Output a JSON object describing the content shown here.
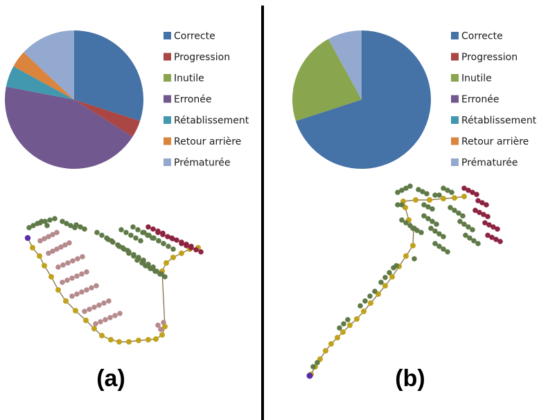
{
  "colors": {
    "divider": "#000000",
    "edge": "#8a7a50",
    "node_path": "#c1a21c",
    "node_start": "#5a2ea6",
    "node_green": "#5f7a47",
    "node_pink": "#b58a8c",
    "node_dark_red": "#8c2341"
  },
  "chart_data": [
    {
      "type": "pie",
      "panel": "(a)",
      "categories": [
        "Correcte",
        "Progression",
        "Inutile",
        "Erronée",
        "Rétablissement",
        "Retour arrière",
        "Prématurée"
      ],
      "values": [
        30,
        4,
        0,
        44,
        5,
        4,
        13
      ],
      "colors": [
        "#4572a7",
        "#aa4643",
        "#89a54e",
        "#71588f",
        "#4198af",
        "#db843d",
        "#93a9cf"
      ],
      "legend_position": "right"
    },
    {
      "type": "pie",
      "panel": "(b)",
      "categories": [
        "Correcte",
        "Progression",
        "Inutile",
        "Erronée",
        "Rétablissement",
        "Retour arrière",
        "Prématurée"
      ],
      "values": [
        70,
        0,
        22,
        0,
        0,
        0,
        8
      ],
      "colors": [
        "#4572a7",
        "#aa4643",
        "#89a54e",
        "#71588f",
        "#4198af",
        "#db843d",
        "#93a9cf"
      ],
      "legend_position": "right"
    }
  ]
}
